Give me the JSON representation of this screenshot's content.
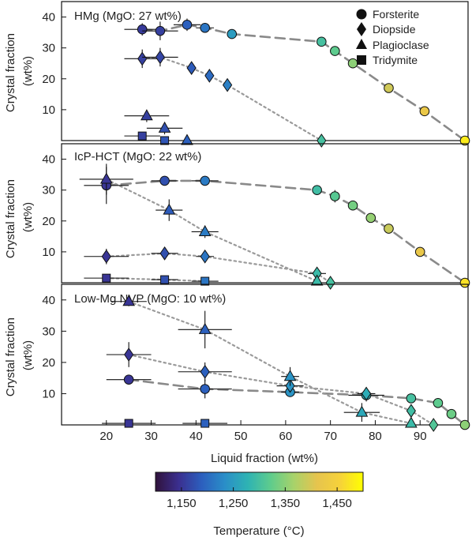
{
  "chart_data": [
    {
      "type": "scatter",
      "title": "HMg (MgO: 27 wt%)",
      "ylabel": "Crystal fraction (wt%)",
      "xlim": [
        10,
        100
      ],
      "ylim": [
        0,
        45
      ],
      "yticks": [
        10,
        20,
        30,
        40
      ],
      "show_xtick_labels": false,
      "legend": {
        "position": "top-right",
        "entries": [
          "Forsterite",
          "Diopside",
          "Plagioclase",
          "Tridymite"
        ]
      },
      "series": [
        {
          "name": "Forsterite",
          "marker": "circle",
          "line": "dashed",
          "points": [
            {
              "x": 28,
              "y": 36,
              "t": 1155,
              "xe": 4,
              "ye": 2
            },
            {
              "x": 32,
              "y": 35.5,
              "t": 1160,
              "xe": 4,
              "ye": 3
            },
            {
              "x": 38,
              "y": 37.5,
              "t": 1190,
              "xe": 3,
              "ye": 2
            },
            {
              "x": 42,
              "y": 36.5,
              "t": 1210,
              "xe": 2,
              "ye": 1.5
            },
            {
              "x": 48,
              "y": 34.5,
              "t": 1250,
              "xe": 0,
              "ye": 0
            },
            {
              "x": 68,
              "y": 32,
              "t": 1300,
              "xe": 1,
              "ye": 1.5
            },
            {
              "x": 71,
              "y": 29,
              "t": 1320,
              "xe": 1,
              "ye": 1.5
            },
            {
              "x": 75,
              "y": 25,
              "t": 1350,
              "xe": 1,
              "ye": 1.5
            },
            {
              "x": 83,
              "y": 17,
              "t": 1395,
              "xe": 1,
              "ye": 1.5
            },
            {
              "x": 91,
              "y": 9.5,
              "t": 1425,
              "xe": 1,
              "ye": 1.5
            },
            {
              "x": 100,
              "y": 0,
              "t": 1480,
              "xe": 0,
              "ye": 0
            }
          ]
        },
        {
          "name": "Diopside",
          "marker": "diamond",
          "line": "dotted",
          "points": [
            {
              "x": 28,
              "y": 26.5,
              "t": 1160,
              "xe": 4,
              "ye": 3
            },
            {
              "x": 32,
              "y": 27,
              "t": 1165,
              "xe": 4,
              "ye": 3
            },
            {
              "x": 39,
              "y": 23.5,
              "t": 1185,
              "xe": 1,
              "ye": 2
            },
            {
              "x": 43,
              "y": 21,
              "t": 1200,
              "xe": 1,
              "ye": 2
            },
            {
              "x": 47,
              "y": 18,
              "t": 1220,
              "xe": 1,
              "ye": 2
            },
            {
              "x": 68,
              "y": 0,
              "t": 1300,
              "xe": 0,
              "ye": 0
            }
          ]
        },
        {
          "name": "Plagioclase",
          "marker": "triangle",
          "line": "none",
          "points": [
            {
              "x": 29,
              "y": 8,
              "t": 1160,
              "xe": 5,
              "ye": 2
            },
            {
              "x": 33,
              "y": 4,
              "t": 1175,
              "xe": 4,
              "ye": 2
            },
            {
              "x": 38,
              "y": 0,
              "t": 1190,
              "xe": 0,
              "ye": 0
            }
          ]
        },
        {
          "name": "Tridymite",
          "marker": "square",
          "line": "none",
          "points": [
            {
              "x": 28,
              "y": 1.5,
              "t": 1160,
              "xe": 4,
              "ye": 1
            },
            {
              "x": 33,
              "y": 0,
              "t": 1180,
              "xe": 0,
              "ye": 0
            }
          ]
        }
      ]
    },
    {
      "type": "scatter",
      "title": "IcP-HCT (MgO: 22 wt%)",
      "ylabel": "Crystal fraction (wt%)",
      "xlim": [
        10,
        100
      ],
      "ylim": [
        0,
        45
      ],
      "yticks": [
        10,
        20,
        30,
        40
      ],
      "show_xtick_labels": false,
      "series": [
        {
          "name": "Forsterite",
          "marker": "circle",
          "line": "dashed",
          "points": [
            {
              "x": 20,
              "y": 31.5,
              "t": 1150,
              "xe": 5,
              "ye": 6
            },
            {
              "x": 33,
              "y": 33,
              "t": 1175,
              "xe": 3,
              "ye": 0.5
            },
            {
              "x": 42,
              "y": 33,
              "t": 1215,
              "xe": 3,
              "ye": 0.5
            },
            {
              "x": 67,
              "y": 30,
              "t": 1295,
              "xe": 1,
              "ye": 1
            },
            {
              "x": 71,
              "y": 28,
              "t": 1315,
              "xe": 1,
              "ye": 2
            },
            {
              "x": 75,
              "y": 25,
              "t": 1335,
              "xe": 1,
              "ye": 1.5
            },
            {
              "x": 79,
              "y": 21,
              "t": 1355,
              "xe": 1,
              "ye": 1.5
            },
            {
              "x": 83,
              "y": 17.5,
              "t": 1390,
              "xe": 1,
              "ye": 1.5
            },
            {
              "x": 90,
              "y": 10,
              "t": 1420,
              "xe": 1,
              "ye": 1
            },
            {
              "x": 100,
              "y": 0,
              "t": 1470,
              "xe": 0,
              "ye": 0
            }
          ]
        },
        {
          "name": "Diopside",
          "marker": "diamond",
          "line": "dotted",
          "points": [
            {
              "x": 20,
              "y": 8.5,
              "t": 1150,
              "xe": 5,
              "ye": 2.5
            },
            {
              "x": 33,
              "y": 9.5,
              "t": 1175,
              "xe": 3,
              "ye": 1.5
            },
            {
              "x": 42,
              "y": 8.5,
              "t": 1210,
              "xe": 2,
              "ye": 1.5
            },
            {
              "x": 67,
              "y": 3,
              "t": 1290,
              "xe": 2,
              "ye": 1.5
            },
            {
              "x": 70,
              "y": 0,
              "t": 1300,
              "xe": 0,
              "ye": 0
            }
          ]
        },
        {
          "name": "Plagioclase",
          "marker": "triangle",
          "line": "dotted",
          "points": [
            {
              "x": 20,
              "y": 33.5,
              "t": 1150,
              "xe": 6,
              "ye": 5
            },
            {
              "x": 34,
              "y": 23.5,
              "t": 1185,
              "xe": 3,
              "ye": 3.5
            },
            {
              "x": 42,
              "y": 16.5,
              "t": 1215,
              "xe": 3,
              "ye": 2
            },
            {
              "x": 67,
              "y": 0.5,
              "t": 1290,
              "xe": 0,
              "ye": 1
            }
          ]
        },
        {
          "name": "Tridymite",
          "marker": "square",
          "line": "dotted",
          "points": [
            {
              "x": 20,
              "y": 1.5,
              "t": 1150,
              "xe": 5,
              "ye": 1
            },
            {
              "x": 33,
              "y": 1,
              "t": 1175,
              "xe": 3,
              "ye": 0.5
            },
            {
              "x": 42,
              "y": 0.5,
              "t": 1210,
              "xe": 3,
              "ye": 0.5
            }
          ]
        }
      ]
    },
    {
      "type": "scatter",
      "title": "Low-Mg NVP (MgO: 10 wt%)",
      "ylabel": "Crystal fraction (wt%)",
      "xlabel": "Liquid fraction (wt%)",
      "xlim": [
        10,
        100
      ],
      "ylim": [
        0,
        45
      ],
      "yticks": [
        10,
        20,
        30,
        40
      ],
      "xticks": [
        20,
        30,
        40,
        50,
        60,
        70,
        80,
        90
      ],
      "show_xtick_labels": true,
      "series": [
        {
          "name": "Forsterite",
          "marker": "circle",
          "line": "dashed",
          "points": [
            {
              "x": 25,
              "y": 14.5,
              "t": 1150,
              "xe": 5,
              "ye": 1.5
            },
            {
              "x": 42,
              "y": 11.5,
              "t": 1190,
              "xe": 6,
              "ye": 3
            },
            {
              "x": 61,
              "y": 10.5,
              "t": 1240,
              "xe": 2,
              "ye": 1
            },
            {
              "x": 78,
              "y": 9.5,
              "t": 1270,
              "xe": 4,
              "ye": 2
            },
            {
              "x": 88,
              "y": 8.5,
              "t": 1300,
              "xe": 1,
              "ye": 1.5
            },
            {
              "x": 94,
              "y": 7,
              "t": 1320,
              "xe": 1,
              "ye": 1
            },
            {
              "x": 97,
              "y": 3.5,
              "t": 1330,
              "xe": 1,
              "ye": 0.5
            },
            {
              "x": 100,
              "y": 0,
              "t": 1350,
              "xe": 0,
              "ye": 0
            }
          ]
        },
        {
          "name": "Diopside",
          "marker": "diamond",
          "line": "dotted",
          "points": [
            {
              "x": 25,
              "y": 22.5,
              "t": 1150,
              "xe": 5,
              "ye": 4
            },
            {
              "x": 42,
              "y": 17,
              "t": 1190,
              "xe": 6,
              "ye": 3
            },
            {
              "x": 61,
              "y": 12.5,
              "t": 1240,
              "xe": 3,
              "ye": 2
            },
            {
              "x": 78,
              "y": 10,
              "t": 1270,
              "xe": 2,
              "ye": 1.5
            },
            {
              "x": 88,
              "y": 4.5,
              "t": 1295,
              "xe": 1,
              "ye": 2
            },
            {
              "x": 93,
              "y": 0,
              "t": 1310,
              "xe": 0,
              "ye": 0
            }
          ]
        },
        {
          "name": "Plagioclase",
          "marker": "triangle",
          "line": "dotted",
          "points": [
            {
              "x": 25,
              "y": 39.5,
              "t": 1150,
              "xe": 4,
              "ye": 1.5
            },
            {
              "x": 42,
              "y": 30.5,
              "t": 1190,
              "xe": 6,
              "ye": 6
            },
            {
              "x": 61,
              "y": 15.5,
              "t": 1240,
              "xe": 2,
              "ye": 3
            },
            {
              "x": 77,
              "y": 4,
              "t": 1265,
              "xe": 4,
              "ye": 3
            },
            {
              "x": 88,
              "y": 0.5,
              "t": 1290,
              "xe": 0,
              "ye": 1
            }
          ]
        },
        {
          "name": "Tridymite",
          "marker": "square",
          "line": "none",
          "points": [
            {
              "x": 25,
              "y": 0.5,
              "t": 1150,
              "xe": 6,
              "ye": 0.5
            },
            {
              "x": 42,
              "y": 0.5,
              "t": 1190,
              "xe": 5,
              "ye": 0.5
            }
          ]
        }
      ]
    }
  ],
  "colorbar": {
    "label": "Temperature (°C)",
    "min": 1100,
    "max": 1500,
    "ticks": [
      1150,
      1250,
      1350,
      1450
    ],
    "tick_labels": [
      "1,150",
      "1,250",
      "1,350",
      "1,450"
    ],
    "colors": [
      "#30123b",
      "#3b2f8f",
      "#2c5fbe",
      "#2a8ec8",
      "#2eb3b3",
      "#5fcc8c",
      "#a8d26a",
      "#e6c44e",
      "#f6d23a",
      "#ffff00"
    ]
  },
  "colors": {
    "dashed_line": "#8a8a8a",
    "dotted_line": "#9a9a9a",
    "marker_stroke": "#111111",
    "errorbar": "#111111"
  }
}
